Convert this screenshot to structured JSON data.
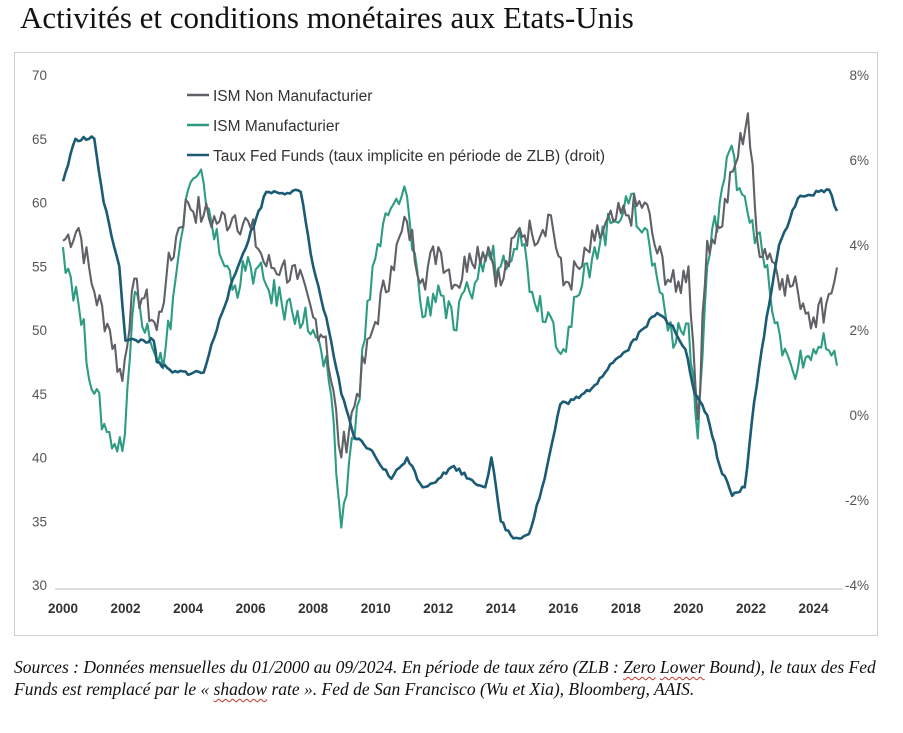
{
  "title": "Activités et conditions monétaires aux Etats-Unis",
  "source": {
    "p1": "Sources : Données mensuelles du 01/2000 au 09/2024. En période de taux zéro (ZLB : ",
    "w1": "Zero",
    "p2": " ",
    "w2": "Lower",
    "p3": " Bound), le taux des Fed Funds est remplacé par le « ",
    "w3": "shadow",
    "p4": " rate ». Fed de San Francisco (Wu et Xia), Bloomberg, AAIS."
  },
  "chart_data": {
    "type": "line",
    "xlim": [
      2000,
      2024.75
    ],
    "x_ticks": [
      2000,
      2002,
      2004,
      2006,
      2008,
      2010,
      2012,
      2014,
      2016,
      2018,
      2020,
      2022,
      2024
    ],
    "x_tick_labels": [
      "2000",
      "2002",
      "2004",
      "2006",
      "2008",
      "2010",
      "2012",
      "2014",
      "2016",
      "2018",
      "2020",
      "2022",
      "2024"
    ],
    "y_left": {
      "range": [
        30,
        70
      ],
      "ticks": [
        30,
        35,
        40,
        45,
        50,
        55,
        60,
        65,
        70
      ],
      "tick_labels": [
        "30",
        "35",
        "40",
        "45",
        "50",
        "55",
        "60",
        "65",
        "70"
      ]
    },
    "y_right": {
      "range": [
        -4,
        8
      ],
      "ticks": [
        -4,
        -2,
        0,
        2,
        4,
        6,
        8
      ],
      "tick_labels": [
        "-4%",
        "-2%",
        "0%",
        "2%",
        "4%",
        "6%",
        "8%"
      ]
    },
    "grid": false,
    "legend": "top-left",
    "series": [
      {
        "name": "ISM Non Manufacturier",
        "axis": "left",
        "color": "#5f6166",
        "points": [
          [
            2000.0,
            57
          ],
          [
            2000.5,
            58
          ],
          [
            2001.0,
            53
          ],
          [
            2001.5,
            50
          ],
          [
            2001.9,
            46
          ],
          [
            2002.2,
            53
          ],
          [
            2002.6,
            52.5
          ],
          [
            2003.0,
            50
          ],
          [
            2003.3,
            54
          ],
          [
            2003.7,
            58
          ],
          [
            2004.0,
            60
          ],
          [
            2004.5,
            59
          ],
          [
            2005.0,
            58.5
          ],
          [
            2005.5,
            59
          ],
          [
            2006.0,
            58
          ],
          [
            2006.5,
            55
          ],
          [
            2007.0,
            55
          ],
          [
            2007.5,
            54
          ],
          [
            2008.0,
            51
          ],
          [
            2008.4,
            49.5
          ],
          [
            2008.9,
            40
          ],
          [
            2009.4,
            45
          ],
          [
            2009.9,
            50
          ],
          [
            2010.5,
            55
          ],
          [
            2011.0,
            58.5
          ],
          [
            2011.5,
            54
          ],
          [
            2012.0,
            56.5
          ],
          [
            2012.6,
            53.5
          ],
          [
            2013.0,
            56
          ],
          [
            2013.6,
            56.5
          ],
          [
            2014.0,
            53.5
          ],
          [
            2014.6,
            58
          ],
          [
            2015.0,
            57.5
          ],
          [
            2015.6,
            59
          ],
          [
            2016.0,
            53.5
          ],
          [
            2016.6,
            55
          ],
          [
            2017.0,
            57
          ],
          [
            2017.6,
            58.5
          ],
          [
            2018.0,
            59
          ],
          [
            2018.6,
            60
          ],
          [
            2019.0,
            56
          ],
          [
            2019.6,
            53
          ],
          [
            2020.0,
            55
          ],
          [
            2020.3,
            43
          ],
          [
            2020.6,
            57
          ],
          [
            2021.0,
            58
          ],
          [
            2021.5,
            63
          ],
          [
            2021.9,
            67
          ],
          [
            2022.2,
            57
          ],
          [
            2022.6,
            56
          ],
          [
            2023.0,
            54
          ],
          [
            2023.5,
            53
          ],
          [
            2024.0,
            51
          ],
          [
            2024.4,
            52
          ],
          [
            2024.75,
            54.9
          ]
        ]
      },
      {
        "name": "ISM Manufacturier",
        "axis": "left",
        "color": "#2e9c83",
        "points": [
          [
            2000.0,
            56.5
          ],
          [
            2000.5,
            52
          ],
          [
            2001.0,
            45
          ],
          [
            2001.4,
            42
          ],
          [
            2001.9,
            40.5
          ],
          [
            2002.3,
            53
          ],
          [
            2002.7,
            50.5
          ],
          [
            2003.2,
            47
          ],
          [
            2003.6,
            54
          ],
          [
            2004.0,
            61
          ],
          [
            2004.5,
            61.5
          ],
          [
            2005.0,
            56
          ],
          [
            2005.5,
            53.5
          ],
          [
            2006.0,
            55
          ],
          [
            2006.5,
            53.5
          ],
          [
            2007.0,
            52
          ],
          [
            2007.5,
            51.5
          ],
          [
            2008.0,
            50
          ],
          [
            2008.5,
            46
          ],
          [
            2008.9,
            34.5
          ],
          [
            2009.4,
            44
          ],
          [
            2009.9,
            55
          ],
          [
            2010.4,
            59
          ],
          [
            2011.0,
            60.5
          ],
          [
            2011.5,
            51
          ],
          [
            2012.0,
            53.5
          ],
          [
            2012.5,
            50
          ],
          [
            2013.0,
            53
          ],
          [
            2013.6,
            56
          ],
          [
            2014.0,
            55
          ],
          [
            2014.6,
            58
          ],
          [
            2015.0,
            53
          ],
          [
            2015.6,
            51
          ],
          [
            2016.0,
            48.5
          ],
          [
            2016.6,
            53.5
          ],
          [
            2017.0,
            56.5
          ],
          [
            2017.6,
            58.5
          ],
          [
            2018.0,
            60.5
          ],
          [
            2018.6,
            58
          ],
          [
            2019.0,
            54
          ],
          [
            2019.6,
            49
          ],
          [
            2020.0,
            50.5
          ],
          [
            2020.3,
            41.5
          ],
          [
            2020.6,
            55
          ],
          [
            2021.0,
            60
          ],
          [
            2021.3,
            64
          ],
          [
            2021.8,
            60.5
          ],
          [
            2022.2,
            57.5
          ],
          [
            2022.6,
            53
          ],
          [
            2023.0,
            48
          ],
          [
            2023.5,
            47
          ],
          [
            2024.0,
            48.5
          ],
          [
            2024.4,
            48.5
          ],
          [
            2024.75,
            47.2
          ]
        ]
      },
      {
        "name": "Taux Fed Funds (taux implicite en période de ZLB) (droit)",
        "axis": "right",
        "color": "#1b5b75",
        "points": [
          [
            2000.0,
            5.5
          ],
          [
            2000.4,
            6.5
          ],
          [
            2001.0,
            6.5
          ],
          [
            2001.3,
            5
          ],
          [
            2001.8,
            3.5
          ],
          [
            2002.0,
            1.75
          ],
          [
            2002.9,
            1.75
          ],
          [
            2003.0,
            1.25
          ],
          [
            2003.5,
            1.0
          ],
          [
            2004.5,
            1.0
          ],
          [
            2005.0,
            2.25
          ],
          [
            2005.6,
            3.5
          ],
          [
            2006.5,
            5.25
          ],
          [
            2007.6,
            5.25
          ],
          [
            2008.0,
            3.5
          ],
          [
            2008.5,
            2.0
          ],
          [
            2008.9,
            0.5
          ],
          [
            2009.3,
            -0.5
          ],
          [
            2009.8,
            -0.8
          ],
          [
            2010.5,
            -1.5
          ],
          [
            2011.0,
            -1.0
          ],
          [
            2011.5,
            -1.7
          ],
          [
            2012.0,
            -1.5
          ],
          [
            2012.5,
            -1.2
          ],
          [
            2013.0,
            -1.5
          ],
          [
            2013.5,
            -1.7
          ],
          [
            2013.7,
            -1.0
          ],
          [
            2014.0,
            -2.5
          ],
          [
            2014.4,
            -2.9
          ],
          [
            2014.9,
            -2.8
          ],
          [
            2015.4,
            -1.5
          ],
          [
            2015.9,
            0.25
          ],
          [
            2016.5,
            0.4
          ],
          [
            2017.0,
            0.7
          ],
          [
            2017.5,
            1.2
          ],
          [
            2018.0,
            1.5
          ],
          [
            2018.5,
            2.0
          ],
          [
            2019.0,
            2.4
          ],
          [
            2019.5,
            2.1
          ],
          [
            2019.9,
            1.55
          ],
          [
            2020.2,
            0.5
          ],
          [
            2020.6,
            0.0
          ],
          [
            2021.0,
            -1.2
          ],
          [
            2021.4,
            -1.9
          ],
          [
            2021.8,
            -1.7
          ],
          [
            2022.1,
            0.3
          ],
          [
            2022.5,
            2.3
          ],
          [
            2022.9,
            4.0
          ],
          [
            2023.5,
            5.1
          ],
          [
            2024.5,
            5.3
          ],
          [
            2024.75,
            4.8
          ]
        ]
      }
    ]
  }
}
